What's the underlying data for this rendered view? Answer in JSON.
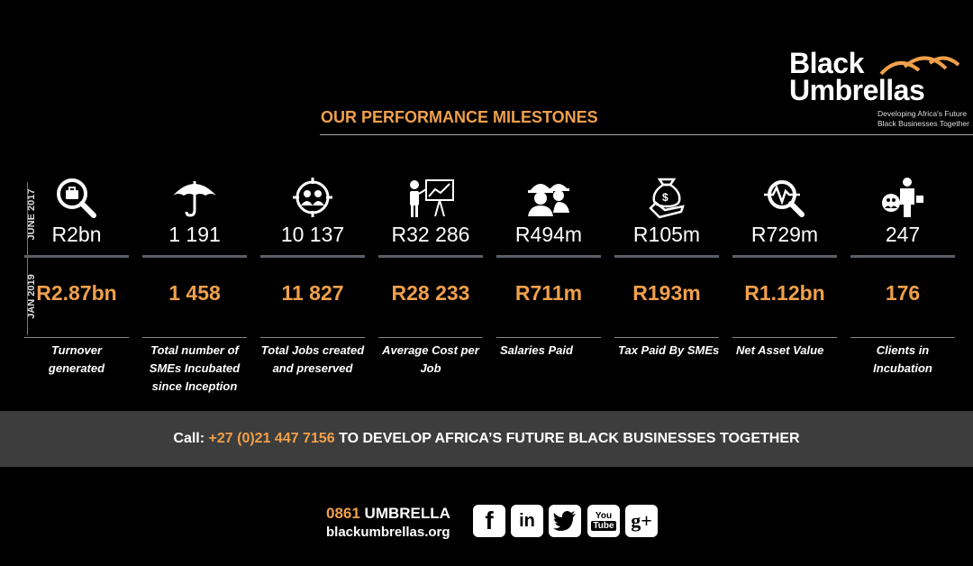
{
  "brand": {
    "line1": "Black",
    "line2": "Umbrellas",
    "tagline1": "Developing Africa's Future",
    "tagline2": "Black Businesses Together",
    "accent_color": "#f0a04b"
  },
  "heading": "OUR PERFORMANCE MILESTONES",
  "period_labels": {
    "top": "JUNE 2017",
    "bottom": "JAN 2019"
  },
  "milestones": [
    {
      "icon": "briefcase-search-icon",
      "value_2017": "R2bn",
      "value_2019": "R2.87bn",
      "label": "Turnover generated"
    },
    {
      "icon": "umbrella-icon",
      "value_2017": "1 191",
      "value_2019": "1 458",
      "label": "Total number of SMEs Incubated since Inception"
    },
    {
      "icon": "people-target-icon",
      "value_2017": "10 137",
      "value_2019": "11 827",
      "label": "Total Jobs created and preserved"
    },
    {
      "icon": "presenter-chart-icon",
      "value_2017": "R32 286",
      "value_2019": "R28 233",
      "label": "Average Cost per Job"
    },
    {
      "icon": "workers-hardhat-icon",
      "value_2017": "R494m",
      "value_2019": "R711m",
      "label": "Salaries Paid"
    },
    {
      "icon": "money-bag-hand-icon",
      "value_2017": "R105m",
      "value_2019": "R193m",
      "label": "Tax Paid By SMEs"
    },
    {
      "icon": "magnifier-pulse-icon",
      "value_2017": "R729m",
      "value_2019": "R1.12bn",
      "label": "Net Asset Value"
    },
    {
      "icon": "businessman-group-icon",
      "value_2017": "247",
      "value_2019": "176",
      "label": "Clients in Incubation"
    }
  ],
  "cta": {
    "prefix": "Call: ",
    "phone": "+27 (0)21 447 7156",
    "suffix": " TO DEVELOP AFRICA’S FUTURE BLACK BUSINESSES TOGETHER"
  },
  "footer": {
    "phone_number": "0861",
    "phone_word": " UMBRELLA",
    "url": "blackumbrellas.org"
  },
  "social": {
    "facebook": "f",
    "linkedin": "in",
    "youtube_top": "You",
    "youtube_bottom": "Tube",
    "googleplus": "g+"
  }
}
